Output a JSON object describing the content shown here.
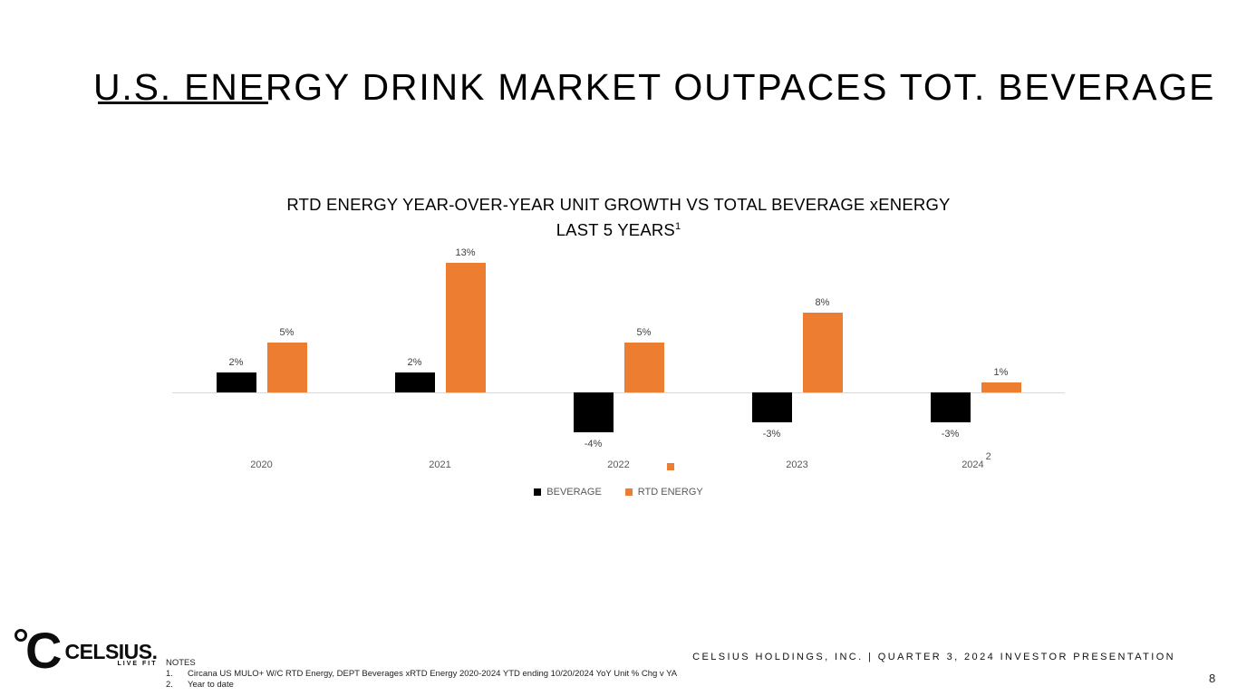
{
  "slide": {
    "title": "U.S. ENERGY DRINK MARKET OUTPACES TOT. BEVERAGE",
    "page_number": "8"
  },
  "chart_data": {
    "type": "bar",
    "title_line1": "RTD ENERGY YEAR-OVER-YEAR UNIT GROWTH VS TOTAL BEVERAGE xENERGY",
    "title_line2": "LAST 5 YEARS",
    "title_superscript": "1",
    "categories": [
      {
        "label": "2020"
      },
      {
        "label": "2021"
      },
      {
        "label": "2022"
      },
      {
        "label": "2023"
      },
      {
        "label": "2024",
        "sup": "2"
      }
    ],
    "series": [
      {
        "name": "BEVERAGE",
        "color": "#000000",
        "values": [
          2,
          2,
          -4,
          -3,
          -3
        ]
      },
      {
        "name": "RTD ENERGY",
        "color": "#ED7D31",
        "values": [
          5,
          13,
          5,
          8,
          1
        ]
      }
    ],
    "value_suffix": "%",
    "ylim": [
      -5,
      14
    ],
    "grid": false,
    "legend_position": "bottom",
    "axis_color": "#D9D9D9",
    "label_color": "#404040",
    "tick_color": "#595959"
  },
  "footer": {
    "logo": {
      "brand": "CELSIUS.",
      "tagline": "LIVE FIT"
    },
    "notes_title": "NOTES",
    "notes": [
      {
        "num": "1.",
        "text": "Circana US MULO+ W/C RTD Energy, DEPT Beverages xRTD Energy 2020-2024 YTD ending 10/20/2024 YoY Unit % Chg v YA"
      },
      {
        "num": "2.",
        "text": "Year to date"
      }
    ],
    "company_line": "CELSIUS HOLDINGS, INC. | QUARTER 3, 2024 INVESTOR PRESENTATION"
  }
}
